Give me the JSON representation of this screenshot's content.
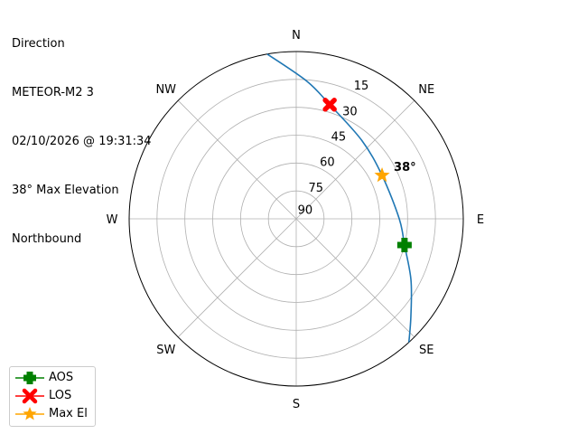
{
  "title_lines": [
    "Direction",
    "METEOR-M2 3",
    "02/10/2026 @ 19:31:34",
    "38° Max Elevation",
    "Northbound"
  ],
  "chart_data": {
    "type": "polar",
    "theta_direction": "clockwise",
    "theta_zero": "north",
    "radial_axis": "elevation (90 at center, 0 at edge)",
    "rlim": [
      90,
      0
    ],
    "grid": true,
    "direction_labels": [
      {
        "label": "N",
        "az": 0
      },
      {
        "label": "NE",
        "az": 45
      },
      {
        "label": "E",
        "az": 90
      },
      {
        "label": "SE",
        "az": 135
      },
      {
        "label": "S",
        "az": 180
      },
      {
        "label": "SW",
        "az": 225
      },
      {
        "label": "W",
        "az": 270
      },
      {
        "label": "NW",
        "az": 315
      }
    ],
    "radial_ticks": [
      "15",
      "30",
      "45",
      "60",
      "75",
      "90"
    ],
    "radial_tick_values": [
      15,
      30,
      45,
      60,
      75,
      90
    ],
    "track": {
      "color": "#1f77b4",
      "points": [
        {
          "az": 350,
          "el": 0
        },
        {
          "az": 4.5,
          "el": 15.8
        },
        {
          "az": 16.4,
          "el": 26
        },
        {
          "az": 40,
          "el": 35
        },
        {
          "az": 63.2,
          "el": 38.2
        },
        {
          "az": 90,
          "el": 34.5
        },
        {
          "az": 103.6,
          "el": 30
        },
        {
          "az": 118,
          "el": 20
        },
        {
          "az": 130.4,
          "el": 8.9
        },
        {
          "az": 137.6,
          "el": 0
        }
      ]
    },
    "markers": [
      {
        "name": "AOS",
        "az": 103.6,
        "el": 30,
        "color": "#008000",
        "shape": "plus"
      },
      {
        "name": "LOS",
        "az": 16.4,
        "el": 26,
        "color": "#ff0000",
        "shape": "x"
      },
      {
        "name": "Max El",
        "az": 63.2,
        "el": 38.2,
        "color": "#ffa500",
        "shape": "star"
      }
    ],
    "annotation": "38°",
    "legend_placement": "lower-left"
  }
}
